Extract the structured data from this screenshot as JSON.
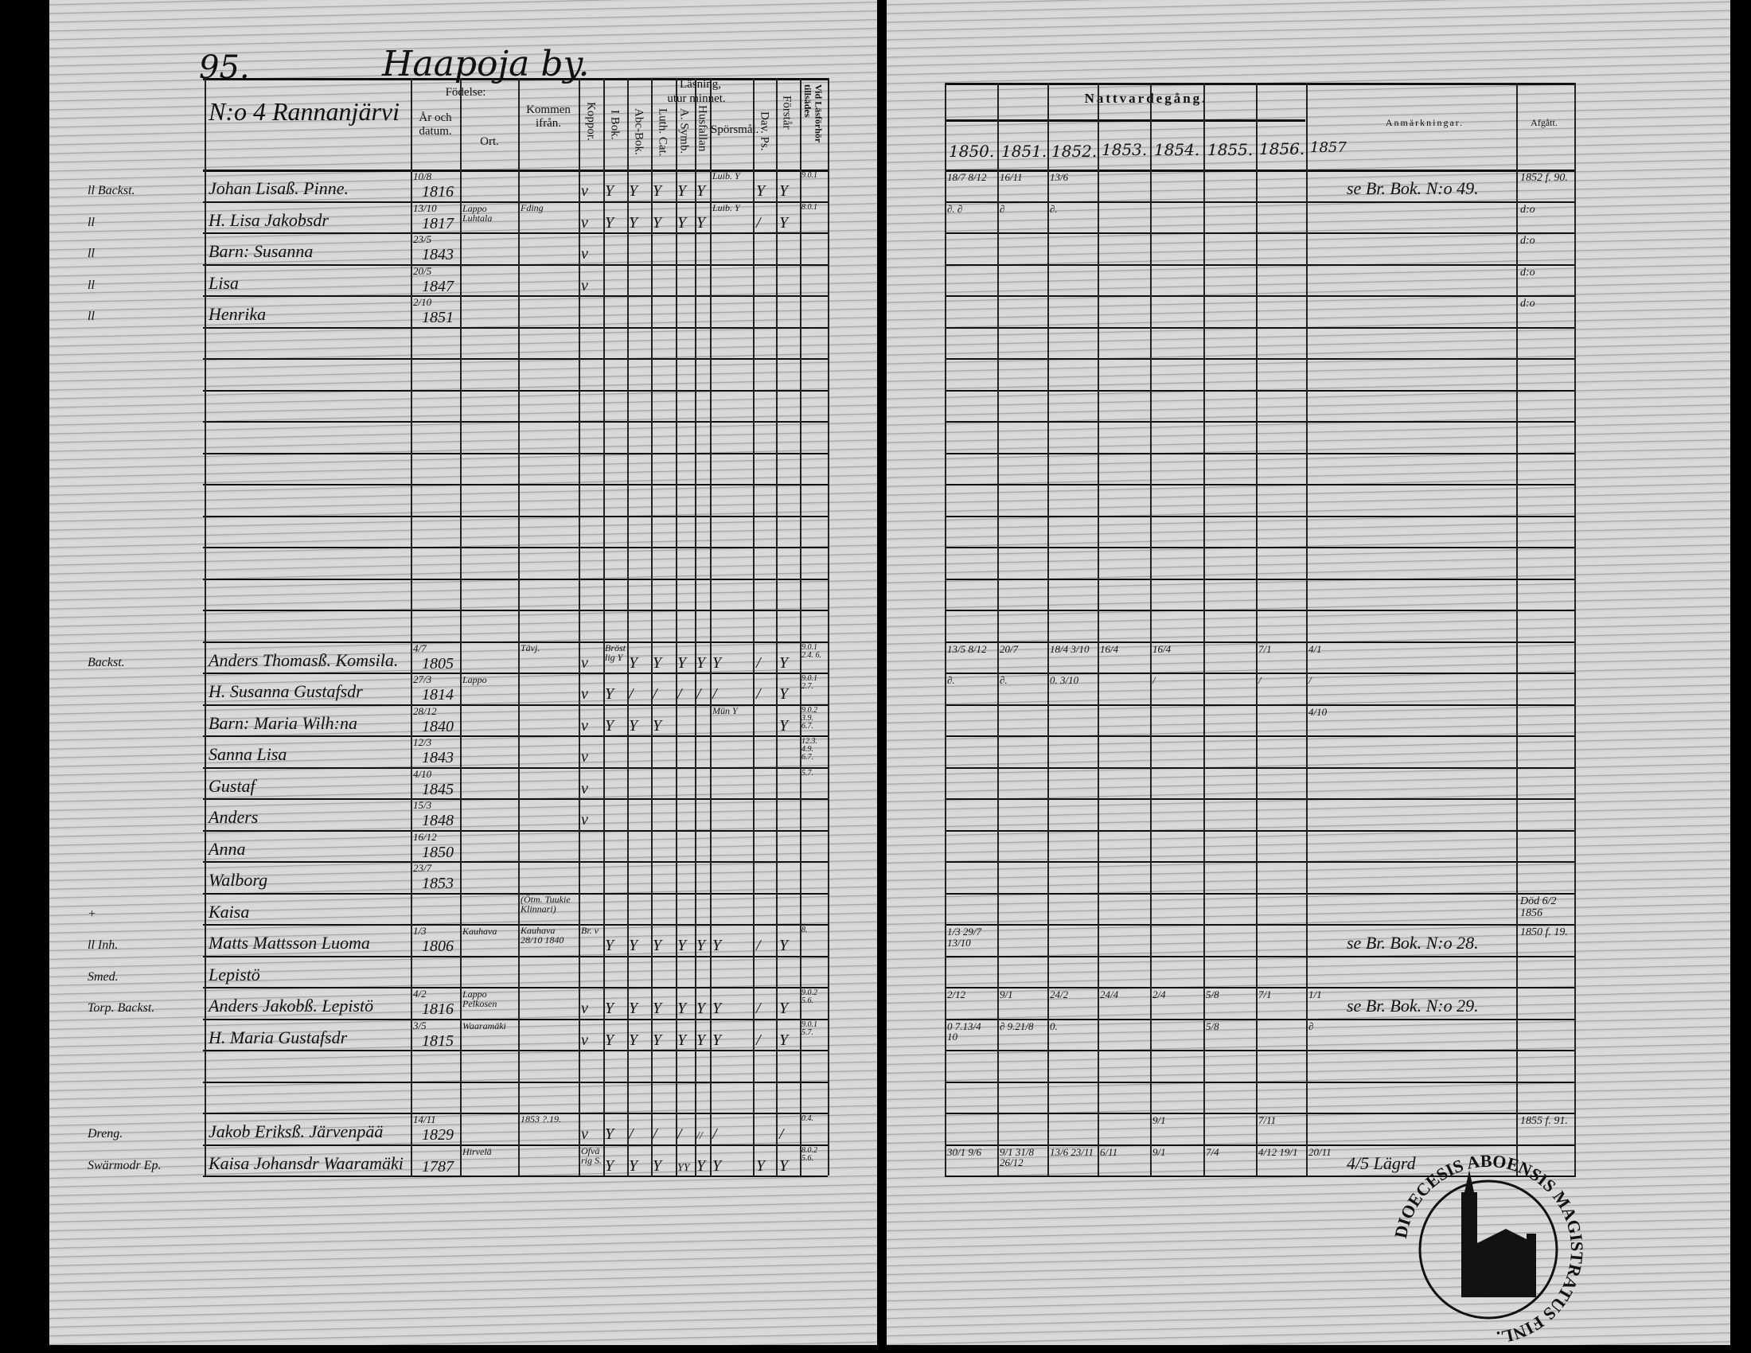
{
  "header": {
    "page_number": "95.",
    "village": "Haapoja by.",
    "farm": "N:o 4 Rannanjärvi",
    "birth_group": "Födelse:",
    "birth_date_col": "År och datum.",
    "birth_place_col": "Ort.",
    "came_from_col": "Kommen ifrån.",
    "smallpox_col": "Koppor.",
    "reading_group": "Läsning,",
    "memory_group": "utur minnet.",
    "book_col": "I Bok.",
    "abc_col": "Abc-Bok.",
    "cat_col": "Luth. Cat.",
    "symb_col": "A. Symb.",
    "husf_col": "Husfallan",
    "question_col": "Spörsmål.",
    "psalm_col": "Dav. Ps.",
    "understands_col": "Förstår",
    "exam_col": "Vid Läsförhör tillsädes",
    "communion_group": "Nattvardegång.",
    "years": [
      "1850.",
      "1851.",
      "1852.",
      "1853.",
      "1854.",
      "1855.",
      "1856."
    ],
    "extra_year": "1857",
    "remarks_col": "Anmärkningar.",
    "departed_col": "Afgått."
  },
  "entries": [
    {
      "margin": "ll Backst.",
      "name": "Johan Lisaß. Pinne.",
      "date": "10/8",
      "year": "1816",
      "place": "",
      "from": "",
      "pox": "v",
      "reading": [
        "Y",
        "Y",
        "Y",
        "Y",
        "Y",
        "Luib. Y",
        "Y",
        "Y"
      ],
      "exam": "9.0.1",
      "natt": [
        "18/7 8/12",
        "16/11",
        "13/6",
        "",
        "",
        "",
        "",
        ""
      ],
      "remark": "se Br. Bok. N:o 49.",
      "departed": "1852 f. 90."
    },
    {
      "margin": "ll",
      "name": "H. Lisa Jakobsdr",
      "date": "13/10",
      "year": "1817",
      "place": "Lappo Luhtala",
      "from": "Fding",
      "pox": "v",
      "reading": [
        "Y",
        "Y",
        "Y",
        "Y",
        "Y",
        "Luib. Y",
        "/",
        "Y"
      ],
      "exam": "8.0.1",
      "natt": [
        "∂. ∂",
        "∂",
        "∂.",
        "",
        "",
        "",
        "",
        ""
      ],
      "remark": "",
      "departed": "d:o"
    },
    {
      "margin": "ll",
      "name": "Barn: Susanna",
      "date": "23/5",
      "year": "1843",
      "place": "",
      "from": "",
      "pox": "v",
      "reading": [
        "",
        "",
        "",
        "",
        "",
        "",
        "",
        ""
      ],
      "exam": "",
      "natt": [
        "",
        "",
        "",
        "",
        "",
        "",
        "",
        ""
      ],
      "remark": "",
      "departed": "d:o"
    },
    {
      "margin": "ll",
      "name": "Lisa",
      "date": "20/5",
      "year": "1847",
      "place": "",
      "from": "",
      "pox": "v",
      "reading": [
        "",
        "",
        "",
        "",
        "",
        "",
        "",
        ""
      ],
      "exam": "",
      "natt": [
        "",
        "",
        "",
        "",
        "",
        "",
        "",
        ""
      ],
      "remark": "",
      "departed": "d:o"
    },
    {
      "margin": "ll",
      "name": "Henrika",
      "date": "2/10",
      "year": "1851",
      "place": "",
      "from": "",
      "pox": "",
      "reading": [
        "",
        "",
        "",
        "",
        "",
        "",
        "",
        ""
      ],
      "exam": "",
      "natt": [
        "",
        "",
        "",
        "",
        "",
        "",
        "",
        ""
      ],
      "remark": "",
      "departed": "d:o"
    },
    {
      "margin": "Backst.",
      "name": "Anders Thomasß. Komsila.",
      "date": "4/7",
      "year": "1805",
      "place": "",
      "from": "Tävj.",
      "pox": "v",
      "reading": [
        "Bröstlig Y",
        "Y",
        "Y",
        "Y",
        "Y",
        "Y",
        "/",
        "Y"
      ],
      "exam": "9.0.1 2.4. 6.",
      "natt": [
        "13/5 8/12",
        "20/7",
        "18/4 3/10",
        "16/4",
        "16/4",
        "",
        "7/1",
        "4/1"
      ],
      "remark": "",
      "departed": ""
    },
    {
      "margin": "",
      "name": "H. Susanna Gustafsdr",
      "date": "27/3",
      "year": "1814",
      "place": "Lappo",
      "from": "",
      "pox": "v",
      "reading": [
        "Y",
        "/",
        "/",
        "/",
        "/",
        "/",
        "/",
        "Y"
      ],
      "exam": "9.0.1 2.7.",
      "natt": [
        "∂.",
        "∂.",
        "0. 3/10",
        "",
        "/",
        "",
        "/",
        "/"
      ],
      "remark": "",
      "departed": ""
    },
    {
      "margin": "",
      "name": "Barn: Maria Wilh:na",
      "date": "28/12",
      "year": "1840",
      "place": "",
      "from": "",
      "pox": "v",
      "reading": [
        "Y",
        "Y",
        "Y",
        "",
        "",
        "Mün Y",
        "",
        "Y"
      ],
      "exam": "9.0.2 3.9. 6.7.",
      "natt": [
        "",
        "",
        "",
        "",
        "",
        "",
        "",
        "4/10"
      ],
      "remark": "",
      "departed": ""
    },
    {
      "margin": "",
      "name": "Sanna Lisa",
      "date": "12/3",
      "year": "1843",
      "place": "",
      "from": "",
      "pox": "v",
      "reading": [
        "",
        "",
        "",
        "",
        "",
        "",
        "",
        ""
      ],
      "exam": "12.3. 4.9. 6.7.",
      "natt": [
        "",
        "",
        "",
        "",
        "",
        "",
        "",
        ""
      ],
      "remark": "",
      "departed": ""
    },
    {
      "margin": "",
      "name": "Gustaf",
      "date": "4/10",
      "year": "1845",
      "place": "",
      "from": "",
      "pox": "v",
      "reading": [
        "",
        "",
        "",
        "",
        "",
        "",
        "",
        ""
      ],
      "exam": "5.7.",
      "natt": [
        "",
        "",
        "",
        "",
        "",
        "",
        "",
        ""
      ],
      "remark": "",
      "departed": ""
    },
    {
      "margin": "",
      "name": "Anders",
      "date": "15/3",
      "year": "1848",
      "place": "",
      "from": "",
      "pox": "v",
      "reading": [
        "",
        "",
        "",
        "",
        "",
        "",
        "",
        ""
      ],
      "exam": "",
      "natt": [
        "",
        "",
        "",
        "",
        "",
        "",
        "",
        ""
      ],
      "remark": "",
      "departed": ""
    },
    {
      "margin": "",
      "name": "Anna",
      "date": "16/12",
      "year": "1850",
      "place": "",
      "from": "",
      "pox": "",
      "reading": [
        "",
        "",
        "",
        "",
        "",
        "",
        "",
        ""
      ],
      "exam": "",
      "natt": [
        "",
        "",
        "",
        "",
        "",
        "",
        "",
        ""
      ],
      "remark": "",
      "departed": ""
    },
    {
      "margin": "",
      "name": "Walborg",
      "date": "23/7",
      "year": "1853",
      "place": "",
      "from": "",
      "pox": "",
      "reading": [
        "",
        "",
        "",
        "",
        "",
        "",
        "",
        ""
      ],
      "exam": "",
      "natt": [
        "",
        "",
        "",
        "",
        "",
        "",
        "",
        ""
      ],
      "remark": "",
      "departed": ""
    },
    {
      "margin": "+",
      "name": "Kaisa",
      "date": "",
      "year": "",
      "place": "",
      "from": "(Ötm. Tuukie Klinnari)",
      "pox": "",
      "reading": [
        "",
        "",
        "",
        "",
        "",
        "",
        "",
        ""
      ],
      "exam": "",
      "natt": [
        "",
        "",
        "",
        "",
        "",
        "",
        "",
        ""
      ],
      "remark": "",
      "departed": "Död 6/2 1856"
    },
    {
      "margin": "ll Inh.",
      "name": "Matts Mattsson Luoma",
      "date": "1/3",
      "year": "1806",
      "place": "Kauhava",
      "from": "Kauhava 28/10 1840",
      "pox": "Br. v",
      "reading": [
        "Y",
        "Y",
        "Y",
        "Y",
        "Y",
        "Y",
        "/",
        "Y"
      ],
      "exam": "8.",
      "natt": [
        "1/3 29/7 13/10",
        "",
        "",
        "",
        "",
        "",
        "",
        ""
      ],
      "remark": "se Br. Bok. N:o 28.",
      "departed": "1850 f. 19."
    },
    {
      "margin": "Smed.",
      "name": "Lepistö",
      "date": "",
      "year": "",
      "place": "",
      "from": "",
      "pox": "",
      "reading": [
        "",
        "",
        "",
        "",
        "",
        "",
        "",
        ""
      ],
      "exam": "",
      "natt": [
        "",
        "",
        "",
        "",
        "",
        "",
        "",
        ""
      ],
      "remark": "",
      "departed": ""
    },
    {
      "margin": "Torp. Backst.",
      "name": "Anders Jakobß. Lepistö",
      "date": "4/2",
      "year": "1816",
      "place": "Lappo Pelkosen",
      "from": "",
      "pox": "v",
      "reading": [
        "Y",
        "Y",
        "Y",
        "Y",
        "Y",
        "Y",
        "/",
        "Y"
      ],
      "exam": "9.0.2 5.6.",
      "natt": [
        "2/12",
        "9/1",
        "24/2",
        "24/4",
        "2/4",
        "5/8",
        "7/1",
        "1/1"
      ],
      "remark": "se Br. Bok. N:o 29.",
      "departed": ""
    },
    {
      "margin": "",
      "name": "H. Maria Gustafsdr",
      "date": "3/5",
      "year": "1815",
      "place": "Waaramäki",
      "from": "",
      "pox": "v",
      "reading": [
        "Y",
        "Y",
        "Y",
        "Y",
        "Y",
        "Y",
        "/",
        "Y"
      ],
      "exam": "9.0.1 5.7.",
      "natt": [
        "0 7.13/4 10",
        "∂ 9.21/8",
        "0.",
        "",
        "",
        "5/8",
        "",
        "∂"
      ],
      "remark": "",
      "departed": ""
    },
    {
      "margin": "Dreng.",
      "name": "Jakob Eriksß. Järvenpää",
      "date": "14/11",
      "year": "1829",
      "place": "",
      "from": "1853 ?.19.",
      "pox": "v",
      "reading": [
        "Y",
        "/",
        "/",
        "/",
        "//",
        "/",
        "",
        "/"
      ],
      "exam": "0.4.",
      "natt": [
        "",
        "",
        "",
        "",
        "9/1",
        "",
        "7/11",
        ""
      ],
      "remark": "",
      "departed": "1855 f. 91."
    },
    {
      "margin": "Swärmodr Ep.",
      "name": "Kaisa Johansdr Waaramäki",
      "date": "",
      "year": "1787",
      "place": "Hirvelä",
      "from": "",
      "pox": "Ofvärig S.",
      "reading": [
        "Y",
        "Y",
        "Y",
        "YY",
        "Y",
        "Y",
        "Y",
        "Y"
      ],
      "exam": "8.0.2 5.6.",
      "natt": [
        "30/1 9/6",
        "9/1 31/8 26/12",
        "13/6 23/11",
        "6/11",
        "9/1",
        "7/4",
        "4/12 19/1",
        "20/11"
      ],
      "remark": "4/5 Lägrd",
      "departed": ""
    }
  ],
  "seal": {
    "text": "DIOECESIS ABOENSIS MAGISTRATUS FINL.",
    "icon": "church-icon"
  },
  "colors": {
    "paper": "#d9d9d9",
    "ink": "#111111",
    "background": "#000000"
  }
}
